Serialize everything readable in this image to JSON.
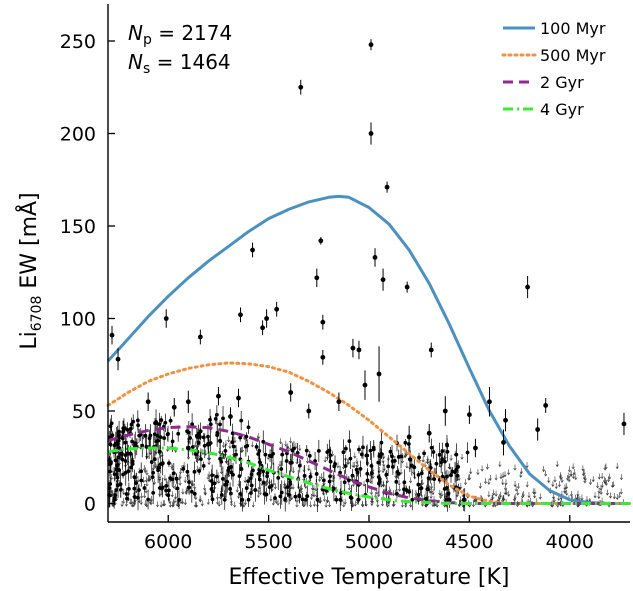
{
  "chart_data": {
    "type": "scatter",
    "xlabel": "Effective Temperature [K]",
    "ylabel": {
      "main": "Li",
      "sub": "6708",
      "rest": " EW [mÅ]"
    },
    "xlim": [
      6300,
      3700
    ],
    "ylim": [
      -10,
      270
    ],
    "x_reversed": true,
    "xticks": [
      6000,
      5500,
      5000,
      4500,
      4000
    ],
    "yticks": [
      0,
      50,
      100,
      150,
      200,
      250
    ],
    "grid": false,
    "legend_position": "top-right",
    "annotations": [
      {
        "sym": "N",
        "sub": "p",
        "text": " = 2174"
      },
      {
        "sym": "N",
        "sub": "s",
        "text": " = 1464"
      }
    ],
    "series": [
      {
        "name": "100 Myr",
        "style": "solid",
        "color": "#4a90c2",
        "x": [
          6300,
          6200,
          6100,
          6000,
          5900,
          5800,
          5700,
          5600,
          5500,
          5400,
          5300,
          5200,
          5150,
          5100,
          5000,
          4900,
          4800,
          4700,
          4600,
          4500,
          4400,
          4300,
          4200,
          4100,
          4000,
          3900,
          3800,
          3700
        ],
        "y": [
          77,
          89,
          101,
          112,
          122,
          131,
          139,
          147,
          154,
          159,
          163,
          165.5,
          166,
          165.5,
          160,
          151,
          137,
          119,
          97,
          73,
          50,
          31,
          16,
          7,
          2,
          0.5,
          0,
          0
        ]
      },
      {
        "name": "500 Myr",
        "style": "dotted",
        "color": "#f5913e",
        "x": [
          6300,
          6200,
          6100,
          6000,
          5900,
          5800,
          5700,
          5600,
          5500,
          5400,
          5300,
          5200,
          5100,
          5000,
          4900,
          4800,
          4700,
          4600,
          4500,
          4400,
          4300,
          4200,
          4000,
          3700
        ],
        "y": [
          53,
          60,
          66,
          70,
          73,
          75,
          76,
          75.5,
          74,
          71,
          66,
          60,
          53,
          45,
          36,
          27,
          18,
          10,
          4,
          1,
          0,
          0,
          0,
          0
        ]
      },
      {
        "name": "2 Gyr",
        "style": "dashed",
        "color": "#8e2a8e",
        "x": [
          6300,
          6200,
          6100,
          6000,
          5900,
          5800,
          5700,
          5600,
          5500,
          5400,
          5300,
          5200,
          5100,
          5000,
          4900,
          4800,
          4700,
          4600,
          4500,
          4400,
          4200,
          4000,
          3700
        ],
        "y": [
          34,
          37,
          39.5,
          41,
          41.5,
          41,
          39,
          36,
          32,
          28,
          23,
          18,
          13,
          9,
          5.5,
          3,
          1.5,
          0.5,
          0,
          0,
          0,
          0,
          0
        ]
      },
      {
        "name": "4 Gyr",
        "style": "dashdot",
        "color": "#33ee33",
        "x": [
          6300,
          6200,
          6100,
          6000,
          5900,
          5800,
          5700,
          5600,
          5500,
          5400,
          5300,
          5200,
          5100,
          5000,
          4900,
          4800,
          4700,
          4600,
          4500,
          4400,
          4200,
          4000,
          3700
        ],
        "y": [
          28,
          29.5,
          30,
          30,
          29,
          27.5,
          25,
          22,
          18,
          14.5,
          11,
          8,
          5.5,
          3.5,
          2,
          1,
          0.5,
          0,
          0,
          0,
          0,
          0,
          0
        ]
      }
    ],
    "detections": [
      {
        "x": 4990,
        "y": 248,
        "e": 3
      },
      {
        "x": 5340,
        "y": 225,
        "e": 4
      },
      {
        "x": 4990,
        "y": 200,
        "e": 6
      },
      {
        "x": 4910,
        "y": 171,
        "e": 3
      },
      {
        "x": 5240,
        "y": 142,
        "e": 2
      },
      {
        "x": 5580,
        "y": 137,
        "e": 4
      },
      {
        "x": 4970,
        "y": 133,
        "e": 5
      },
      {
        "x": 4930,
        "y": 121,
        "e": 6
      },
      {
        "x": 5260,
        "y": 122,
        "e": 5
      },
      {
        "x": 4810,
        "y": 117,
        "e": 3
      },
      {
        "x": 4210,
        "y": 117,
        "e": 6
      },
      {
        "x": 5460,
        "y": 105,
        "e": 4
      },
      {
        "x": 5640,
        "y": 102,
        "e": 4
      },
      {
        "x": 5510,
        "y": 100,
        "e": 5
      },
      {
        "x": 6010,
        "y": 100,
        "e": 5
      },
      {
        "x": 5230,
        "y": 98,
        "e": 4
      },
      {
        "x": 5530,
        "y": 95,
        "e": 4
      },
      {
        "x": 6280,
        "y": 91,
        "e": 5
      },
      {
        "x": 5840,
        "y": 90,
        "e": 4
      },
      {
        "x": 5080,
        "y": 84,
        "e": 5
      },
      {
        "x": 5050,
        "y": 83,
        "e": 5
      },
      {
        "x": 4690,
        "y": 83,
        "e": 4
      },
      {
        "x": 5230,
        "y": 79,
        "e": 4
      },
      {
        "x": 6250,
        "y": 78,
        "e": 6
      },
      {
        "x": 4950,
        "y": 70,
        "e": 15
      },
      {
        "x": 5020,
        "y": 64,
        "e": 8
      },
      {
        "x": 5390,
        "y": 60,
        "e": 5
      },
      {
        "x": 5750,
        "y": 58,
        "e": 5
      },
      {
        "x": 5650,
        "y": 57,
        "e": 5
      },
      {
        "x": 5150,
        "y": 55,
        "e": 5
      },
      {
        "x": 5900,
        "y": 55,
        "e": 6
      },
      {
        "x": 6100,
        "y": 55,
        "e": 5
      },
      {
        "x": 4400,
        "y": 55,
        "e": 8
      },
      {
        "x": 4120,
        "y": 53,
        "e": 4
      },
      {
        "x": 5970,
        "y": 52,
        "e": 5
      },
      {
        "x": 5300,
        "y": 50,
        "e": 4
      },
      {
        "x": 4620,
        "y": 50,
        "e": 8
      },
      {
        "x": 4500,
        "y": 48,
        "e": 5
      },
      {
        "x": 5690,
        "y": 47,
        "e": 5
      },
      {
        "x": 4320,
        "y": 45,
        "e": 6
      },
      {
        "x": 4160,
        "y": 40,
        "e": 6
      },
      {
        "x": 3730,
        "y": 43,
        "e": 6
      },
      {
        "x": 4700,
        "y": 38,
        "e": 5
      },
      {
        "x": 4800,
        "y": 36,
        "e": 6
      },
      {
        "x": 4330,
        "y": 33,
        "e": 7
      },
      {
        "x": 5800,
        "y": 32,
        "e": 5
      },
      {
        "x": 5900,
        "y": 30,
        "e": 5
      },
      {
        "x": 4470,
        "y": 30,
        "e": 5
      }
    ],
    "upper_limits_count": 700
  }
}
